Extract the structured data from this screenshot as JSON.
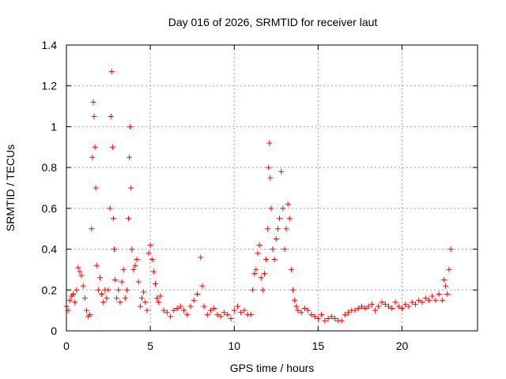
{
  "chart_data": {
    "type": "scatter",
    "title": "Day 016 of 2026, SRMTID for receiver laut",
    "xlabel": "GPS time / hours",
    "ylabel": "SRMTID / TECUs",
    "xlim": [
      0,
      24.5
    ],
    "ylim": [
      0,
      1.4
    ],
    "xticks": [
      0,
      5,
      10,
      15,
      20
    ],
    "xtick_labels": [
      "0",
      "5",
      "10",
      "15",
      "20"
    ],
    "yticks": [
      0,
      0.2,
      0.4,
      0.6,
      0.8,
      1.0,
      1.2,
      1.4
    ],
    "ytick_labels": [
      "0",
      "0.2",
      "0.4",
      "0.6",
      "0.8",
      "1",
      "1.2",
      "1.4"
    ],
    "grid": true,
    "marker": "+",
    "series": [
      {
        "name": "SRMTID",
        "color": "#ff0000",
        "x": [
          0.0,
          0.1,
          0.2,
          0.3,
          0.4,
          0.5,
          0.6,
          0.7,
          0.8,
          0.9,
          1.0,
          1.1,
          1.2,
          1.3,
          1.4,
          1.5,
          1.55,
          1.6,
          1.65,
          1.7,
          1.75,
          1.8,
          1.9,
          2.0,
          2.1,
          2.2,
          2.3,
          2.4,
          2.5,
          2.6,
          2.65,
          2.7,
          2.75,
          2.8,
          2.85,
          2.9,
          3.0,
          3.1,
          3.2,
          3.3,
          3.4,
          3.5,
          3.6,
          3.7,
          3.75,
          3.8,
          3.85,
          3.9,
          4.0,
          4.1,
          4.2,
          4.3,
          4.4,
          4.5,
          4.6,
          4.7,
          4.8,
          4.9,
          5.0,
          5.1,
          5.2,
          5.3,
          5.4,
          5.5,
          5.6,
          5.8,
          6.0,
          6.2,
          6.4,
          6.6,
          6.8,
          7.0,
          7.2,
          7.4,
          7.6,
          7.8,
          8.0,
          8.1,
          8.2,
          8.4,
          8.6,
          8.8,
          9.0,
          9.2,
          9.4,
          9.6,
          9.8,
          10.0,
          10.2,
          10.4,
          10.6,
          10.8,
          11.0,
          11.1,
          11.2,
          11.3,
          11.4,
          11.5,
          11.6,
          11.7,
          11.8,
          11.9,
          12.0,
          12.05,
          12.1,
          12.15,
          12.2,
          12.3,
          12.4,
          12.5,
          12.6,
          12.7,
          12.8,
          12.9,
          13.0,
          13.1,
          13.2,
          13.3,
          13.4,
          13.5,
          13.6,
          13.7,
          13.8,
          14.0,
          14.2,
          14.4,
          14.6,
          14.8,
          15.0,
          15.2,
          15.4,
          15.6,
          15.8,
          16.0,
          16.2,
          16.4,
          16.6,
          16.8,
          17.0,
          17.2,
          17.4,
          17.6,
          17.8,
          18.0,
          18.2,
          18.4,
          18.6,
          18.8,
          19.0,
          19.2,
          19.4,
          19.6,
          19.8,
          20.0,
          20.2,
          20.4,
          20.6,
          20.8,
          21.0,
          21.2,
          21.4,
          21.6,
          21.8,
          22.0,
          22.2,
          22.4,
          22.5,
          22.6,
          22.7,
          22.8,
          22.9
        ],
        "y": [
          0.12,
          0.1,
          0.15,
          0.17,
          0.18,
          0.14,
          0.2,
          0.31,
          0.29,
          0.27,
          0.22,
          0.16,
          0.1,
          0.07,
          0.08,
          0.5,
          0.85,
          1.12,
          1.05,
          0.9,
          0.7,
          0.32,
          0.2,
          0.26,
          0.18,
          0.14,
          0.2,
          0.16,
          0.2,
          0.6,
          1.05,
          1.27,
          0.9,
          0.55,
          0.4,
          0.25,
          0.16,
          0.2,
          0.14,
          0.24,
          0.3,
          0.16,
          0.2,
          0.55,
          0.85,
          1.0,
          0.7,
          0.4,
          0.3,
          0.32,
          0.35,
          0.24,
          0.12,
          0.16,
          0.19,
          0.14,
          0.1,
          0.38,
          0.42,
          0.35,
          0.29,
          0.23,
          0.16,
          0.14,
          0.17,
          0.1,
          0.09,
          0.07,
          0.1,
          0.11,
          0.12,
          0.1,
          0.08,
          0.12,
          0.15,
          0.18,
          0.36,
          0.22,
          0.12,
          0.08,
          0.1,
          0.11,
          0.08,
          0.07,
          0.09,
          0.08,
          0.06,
          0.1,
          0.12,
          0.09,
          0.1,
          0.08,
          0.08,
          0.2,
          0.28,
          0.3,
          0.38,
          0.42,
          0.26,
          0.2,
          0.28,
          0.35,
          0.5,
          0.8,
          0.92,
          0.75,
          0.6,
          0.4,
          0.35,
          0.45,
          0.5,
          0.55,
          0.78,
          0.6,
          0.4,
          0.5,
          0.62,
          0.55,
          0.3,
          0.2,
          0.15,
          0.12,
          0.1,
          0.09,
          0.11,
          0.1,
          0.08,
          0.07,
          0.06,
          0.08,
          0.05,
          0.06,
          0.07,
          0.06,
          0.05,
          0.05,
          0.08,
          0.09,
          0.1,
          0.1,
          0.11,
          0.12,
          0.11,
          0.12,
          0.13,
          0.1,
          0.12,
          0.14,
          0.13,
          0.12,
          0.11,
          0.14,
          0.12,
          0.11,
          0.13,
          0.12,
          0.14,
          0.13,
          0.15,
          0.14,
          0.16,
          0.15,
          0.17,
          0.15,
          0.18,
          0.15,
          0.25,
          0.22,
          0.18,
          0.3,
          0.4
        ]
      }
    ]
  }
}
